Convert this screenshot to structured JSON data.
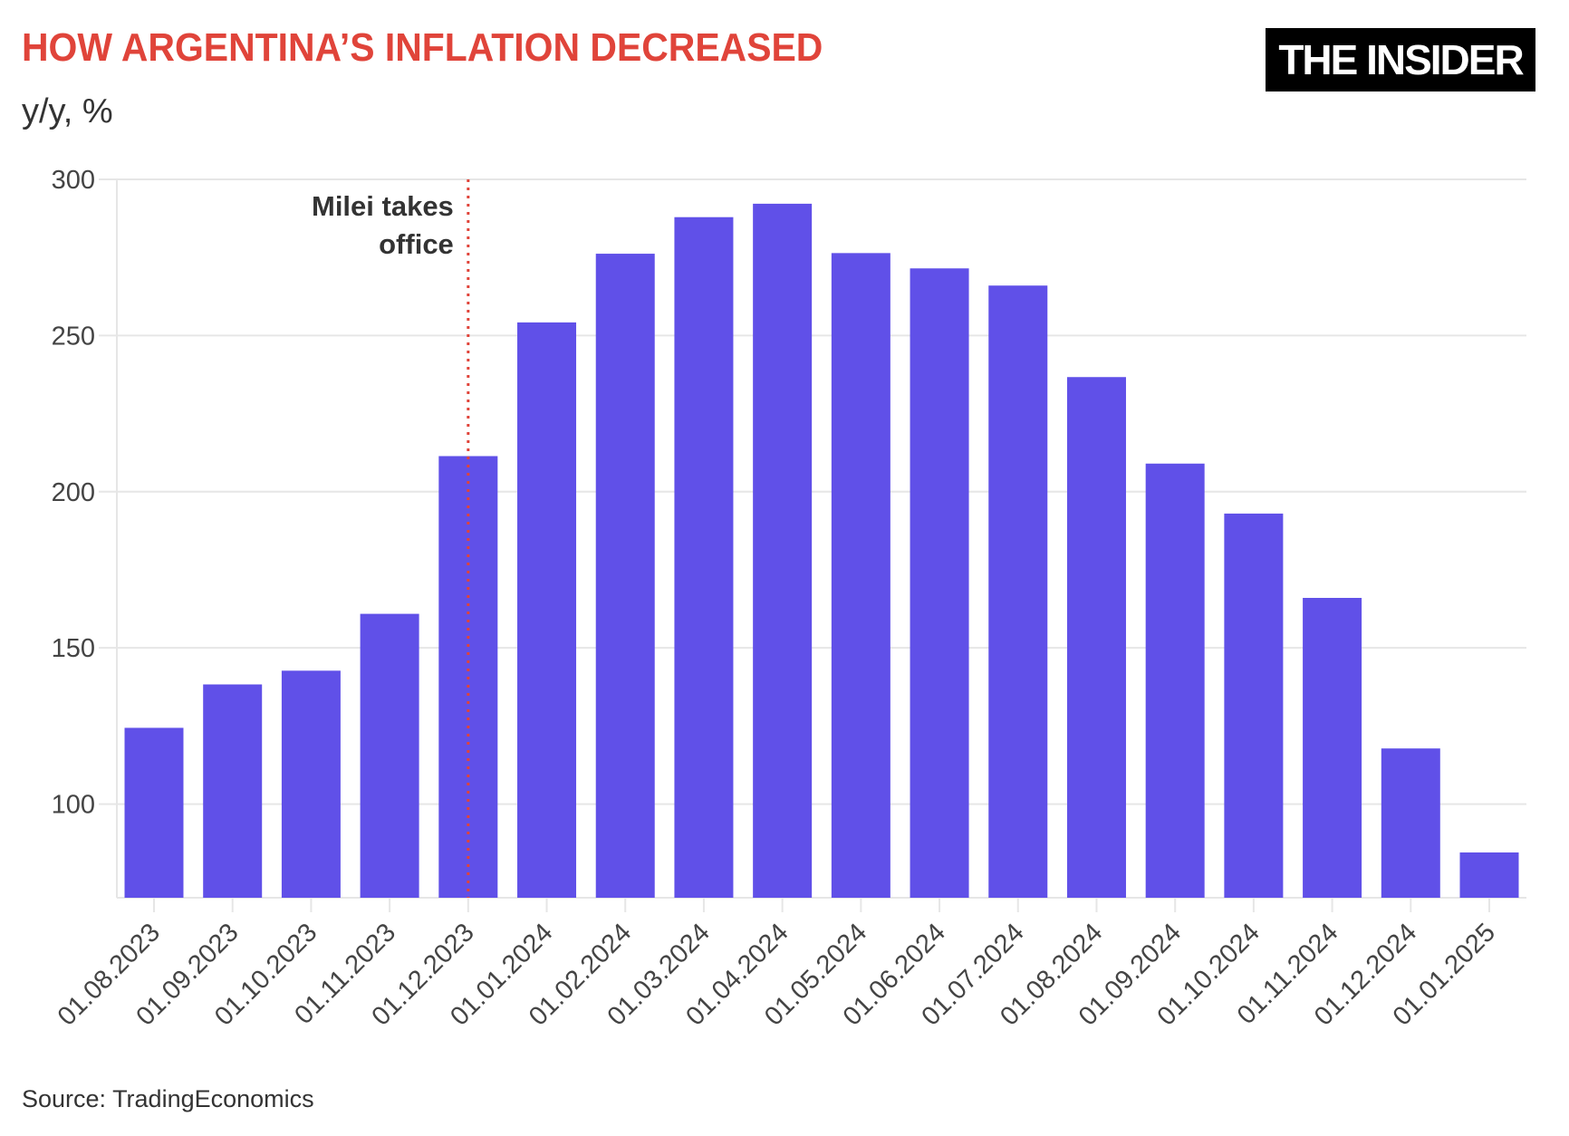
{
  "title": "HOW ARGENTINA’S INFLATION DECREASED",
  "subtitle": "y/y, %",
  "logo": "THE INSIDER",
  "source": "Source: TradingEconomics",
  "chart_data": {
    "type": "bar",
    "title": "HOW ARGENTINA’S INFLATION DECREASED",
    "ylabel": "y/y, %",
    "xlabel": "",
    "ylim": [
      70,
      300
    ],
    "yticks": [
      100,
      150,
      200,
      250,
      300
    ],
    "grid": true,
    "bar_color": "#6050e8",
    "categories": [
      "01.08.2023",
      "01.09.2023",
      "01.10.2023",
      "01.11.2023",
      "01.12.2023",
      "01.01.2024",
      "01.02.2024",
      "01.03.2024",
      "01.04.2024",
      "01.05.2024",
      "01.06.2024",
      "01.07.2024",
      "01.08.2024",
      "01.09.2024",
      "01.10.2024",
      "01.11.2024",
      "01.12.2024",
      "01.01.2025"
    ],
    "values": [
      124.4,
      138.3,
      142.7,
      160.9,
      211.4,
      254.2,
      276.2,
      287.9,
      292.2,
      276.4,
      271.5,
      266.0,
      236.7,
      209.0,
      193.0,
      166.0,
      117.8,
      84.5
    ],
    "annotation": {
      "text_line1": "Milei takes",
      "text_line2": "office",
      "x": "01.12.2023",
      "color": "#e0443a",
      "style": "dotted-vertical-line"
    }
  }
}
